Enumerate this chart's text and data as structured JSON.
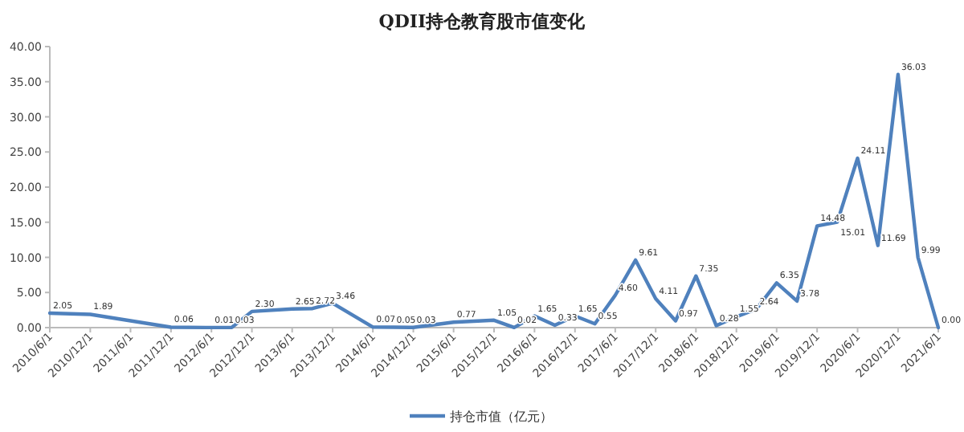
{
  "chart_data": {
    "type": "line",
    "title": "QDII持仓教育股市值变化",
    "x": [
      "2010-06-01",
      "2010-12-01",
      "2011-12-01",
      "2012-06-01",
      "2012-09-01",
      "2012-12-01",
      "2013-06-01",
      "2013-09-01",
      "2013-12-01",
      "2014-06-01",
      "2014-09-01",
      "2014-12-01",
      "2015-06-01",
      "2015-12-01",
      "2016-03-01",
      "2016-06-01",
      "2016-09-01",
      "2016-12-01",
      "2017-03-01",
      "2017-06-01",
      "2017-09-01",
      "2017-12-01",
      "2018-03-01",
      "2018-06-01",
      "2018-09-01",
      "2018-12-01",
      "2019-03-01",
      "2019-06-01",
      "2019-09-01",
      "2019-12-01",
      "2020-03-01",
      "2020-06-01",
      "2020-09-01",
      "2020-12-01",
      "2021-03-01",
      "2021-06-01"
    ],
    "series": [
      {
        "name": "持仓市值（亿元）",
        "color": "#4f81bd",
        "values": [
          2.05,
          1.89,
          0.06,
          0.01,
          0.03,
          2.3,
          2.65,
          2.72,
          3.46,
          0.07,
          0.05,
          0.03,
          0.77,
          1.05,
          0.02,
          1.65,
          0.33,
          1.65,
          0.55,
          4.6,
          9.61,
          4.11,
          0.97,
          7.35,
          0.28,
          1.55,
          2.64,
          6.35,
          3.78,
          14.48,
          15.01,
          24.11,
          11.69,
          36.03,
          9.99,
          0.0
        ],
        "value_labels": [
          "2.05",
          "1.89",
          "0.06",
          "0.01",
          "0.03",
          "2.30",
          "2.65",
          "2.72",
          "3.46",
          "0.07",
          "0.05",
          "0.03",
          "0.77",
          "1.05",
          "0.02",
          "1.65",
          "0.33",
          "1.65",
          "0.55",
          "4.60",
          "9.61",
          "4.11",
          "0.97",
          "7.35",
          "0.28",
          "1.55",
          "2.64",
          "6.35",
          "3.78",
          "14.48",
          "15.01",
          "24.11",
          "11.69",
          "36.03",
          "9.99",
          "0.00"
        ]
      }
    ],
    "xlim": [
      "2010-06-01",
      "2021-06-01"
    ],
    "xticks": [
      {
        "value": "2010-06-01",
        "label": "2010/6/1"
      },
      {
        "value": "2010-12-01",
        "label": "2010/12/1"
      },
      {
        "value": "2011-06-01",
        "label": "2011/6/1"
      },
      {
        "value": "2011-12-01",
        "label": "2011/12/1"
      },
      {
        "value": "2012-06-01",
        "label": "2012/6/1"
      },
      {
        "value": "2012-12-01",
        "label": "2012/12/1"
      },
      {
        "value": "2013-06-01",
        "label": "2013/6/1"
      },
      {
        "value": "2013-12-01",
        "label": "2013/12/1"
      },
      {
        "value": "2014-06-01",
        "label": "2014/6/1"
      },
      {
        "value": "2014-12-01",
        "label": "2014/12/1"
      },
      {
        "value": "2015-06-01",
        "label": "2015/6/1"
      },
      {
        "value": "2015-12-01",
        "label": "2015/12/1"
      },
      {
        "value": "2016-06-01",
        "label": "2016/6/1"
      },
      {
        "value": "2016-12-01",
        "label": "2016/12/1"
      },
      {
        "value": "2017-06-01",
        "label": "2017/6/1"
      },
      {
        "value": "2017-12-01",
        "label": "2017/12/1"
      },
      {
        "value": "2018-06-01",
        "label": "2018/6/1"
      },
      {
        "value": "2018-12-01",
        "label": "2018/12/1"
      },
      {
        "value": "2019-06-01",
        "label": "2019/6/1"
      },
      {
        "value": "2019-12-01",
        "label": "2019/12/1"
      },
      {
        "value": "2020-06-01",
        "label": "2020/6/1"
      },
      {
        "value": "2020-12-01",
        "label": "2020/12/1"
      },
      {
        "value": "2021-06-01",
        "label": "2021/6/1"
      }
    ],
    "ylim": [
      0,
      40
    ],
    "yticks": [
      {
        "value": 0,
        "label": "0.00"
      },
      {
        "value": 5,
        "label": "5.00"
      },
      {
        "value": 10,
        "label": "10.00"
      },
      {
        "value": 15,
        "label": "15.00"
      },
      {
        "value": 20,
        "label": "20.00"
      },
      {
        "value": 25,
        "label": "25.00"
      },
      {
        "value": 30,
        "label": "30.00"
      },
      {
        "value": 35,
        "label": "35.00"
      },
      {
        "value": 40,
        "label": "40.00"
      }
    ],
    "legend": "bottom",
    "grid": false,
    "marker": "none",
    "line_style": "solid"
  }
}
